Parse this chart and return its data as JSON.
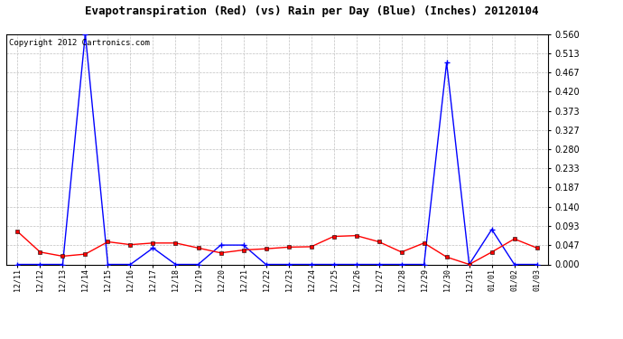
{
  "title": "Evapotranspiration (Red) (vs) Rain per Day (Blue) (Inches) 20120104",
  "copyright": "Copyright 2012 Cartronics.com",
  "labels": [
    "12/11",
    "12/12",
    "12/13",
    "12/14",
    "12/15",
    "12/16",
    "12/17",
    "12/18",
    "12/19",
    "12/20",
    "12/21",
    "12/22",
    "12/23",
    "12/24",
    "12/25",
    "12/26",
    "12/27",
    "12/28",
    "12/29",
    "12/30",
    "12/31",
    "01/01",
    "01/02",
    "01/03"
  ],
  "red_data": [
    0.08,
    0.03,
    0.02,
    0.025,
    0.055,
    0.048,
    0.052,
    0.052,
    0.04,
    0.028,
    0.035,
    0.038,
    0.042,
    0.043,
    0.068,
    0.07,
    0.055,
    0.03,
    0.052,
    0.018,
    0.0,
    0.03,
    0.062,
    0.04
  ],
  "blue_data": [
    0.0,
    0.0,
    0.0,
    0.56,
    0.0,
    0.0,
    0.04,
    0.0,
    0.0,
    0.047,
    0.047,
    0.0,
    0.0,
    0.0,
    0.0,
    0.0,
    0.0,
    0.0,
    0.0,
    0.49,
    0.0,
    0.085,
    0.0,
    0.0
  ],
  "yticks": [
    0.0,
    0.047,
    0.093,
    0.14,
    0.187,
    0.233,
    0.28,
    0.327,
    0.373,
    0.42,
    0.467,
    0.513,
    0.56
  ],
  "ylim": [
    0.0,
    0.56
  ],
  "red_color": "#FF0000",
  "blue_color": "#0000FF",
  "bg_color": "#FFFFFF",
  "grid_color": "#C0C0C0",
  "title_fontsize": 9,
  "copyright_fontsize": 6.5
}
